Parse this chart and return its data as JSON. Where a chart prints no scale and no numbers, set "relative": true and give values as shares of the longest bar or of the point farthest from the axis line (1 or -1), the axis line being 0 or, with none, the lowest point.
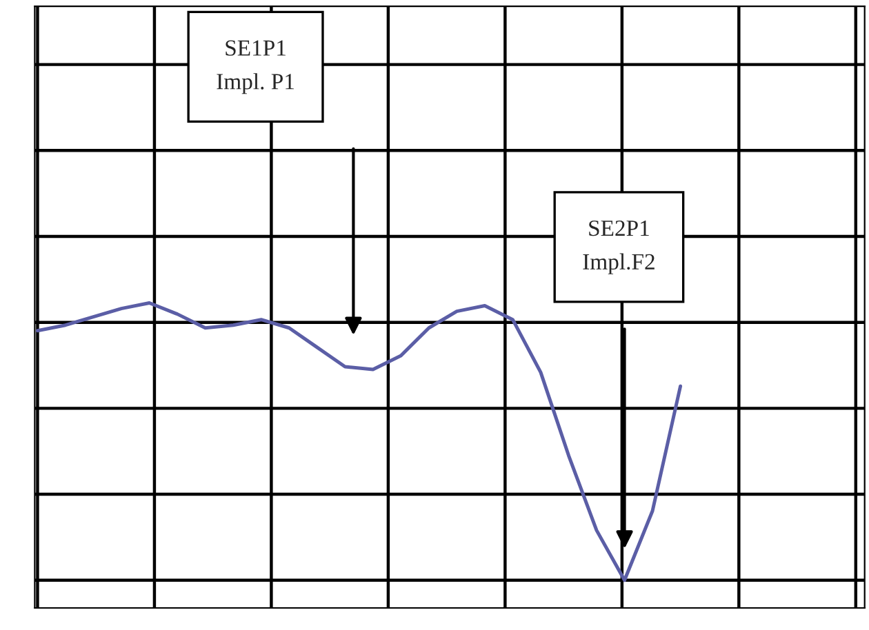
{
  "chart_data": {
    "type": "line",
    "relative": true,
    "grid": true,
    "categories": [
      null,
      null,
      null,
      null,
      null,
      null,
      null,
      null,
      null,
      null,
      null,
      null,
      null,
      null,
      null,
      null,
      null,
      null,
      null,
      null,
      null,
      null,
      null,
      null
    ],
    "series": [
      {
        "color": "#5b5ea6",
        "values": [
          0.9,
          0.92,
          0.95,
          0.98,
          1,
          0.96,
          0.91,
          0.92,
          0.94,
          0.91,
          0.84,
          0.77,
          0.76,
          0.81,
          0.91,
          0.97,
          0.99,
          0.94,
          0.75,
          0.45,
          0.18,
          0,
          0.25,
          0.7
        ]
      }
    ],
    "annotations": [
      "SE1P1\nImpl. P1",
      "SE2P1\nImpl.F2"
    ]
  }
}
